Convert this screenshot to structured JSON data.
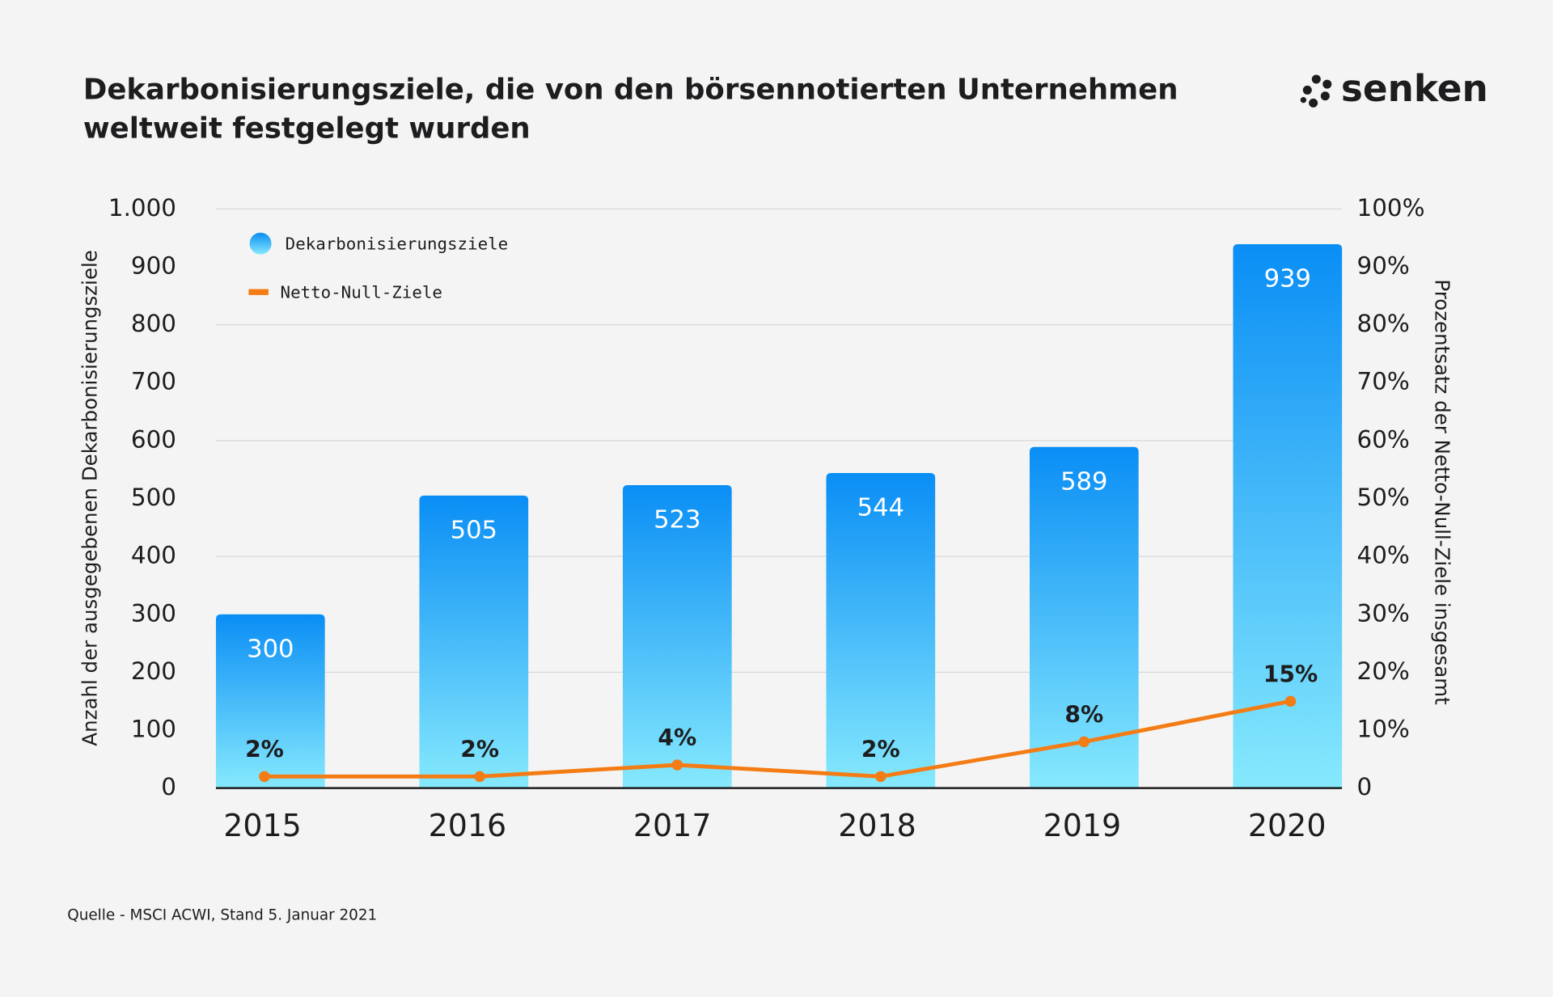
{
  "chart_data": {
    "type": "bar_line",
    "title": "Dekarbonisierungsziele, die von den börsennotierten Unternehmen weltweit festgelegt wurden",
    "logo": "senken",
    "y_label": "Anzahl der ausgegebenen Dekarbonisierungsziele",
    "y2_label": "Prozentsatz der Netto-Null-Ziele insgesamt",
    "source": "Quelle - MSCI ACWI, Stand 5. Januar 2021",
    "categories": [
      "2015",
      "2016",
      "2017",
      "2018",
      "2019",
      "2020"
    ],
    "series": [
      {
        "name": "Dekarbonisierungsziele",
        "type": "bar",
        "color": "#0a8ef5",
        "values": [
          300,
          505,
          523,
          544,
          589,
          939
        ]
      },
      {
        "name": "Netto-Null-Ziele",
        "type": "line",
        "axis": "y2",
        "color": "#f47c14",
        "values": [
          2,
          2,
          4,
          2,
          8,
          15
        ],
        "value_labels": [
          "2%",
          "2%",
          "4%",
          "2%",
          "8%",
          "15%"
        ]
      }
    ],
    "ylim": [
      0,
      1000
    ],
    "yticks": [
      0,
      100,
      200,
      300,
      400,
      500,
      600,
      700,
      800,
      900,
      {
        "value": 1000,
        "label": "1.000"
      }
    ],
    "y2lim": [
      0,
      100
    ],
    "y2ticks": [
      0,
      {
        "value": 10,
        "label": "10%"
      },
      {
        "value": 20,
        "label": "20%"
      },
      {
        "value": 30,
        "label": "30%"
      },
      {
        "value": 40,
        "label": "40%"
      },
      {
        "value": 50,
        "label": "50%"
      },
      {
        "value": 60,
        "label": "60%"
      },
      {
        "value": 70,
        "label": "70%"
      },
      {
        "value": 80,
        "label": "80%"
      },
      {
        "value": 90,
        "label": "90%"
      },
      {
        "value": 100,
        "label": "100%"
      }
    ],
    "grid": true
  }
}
